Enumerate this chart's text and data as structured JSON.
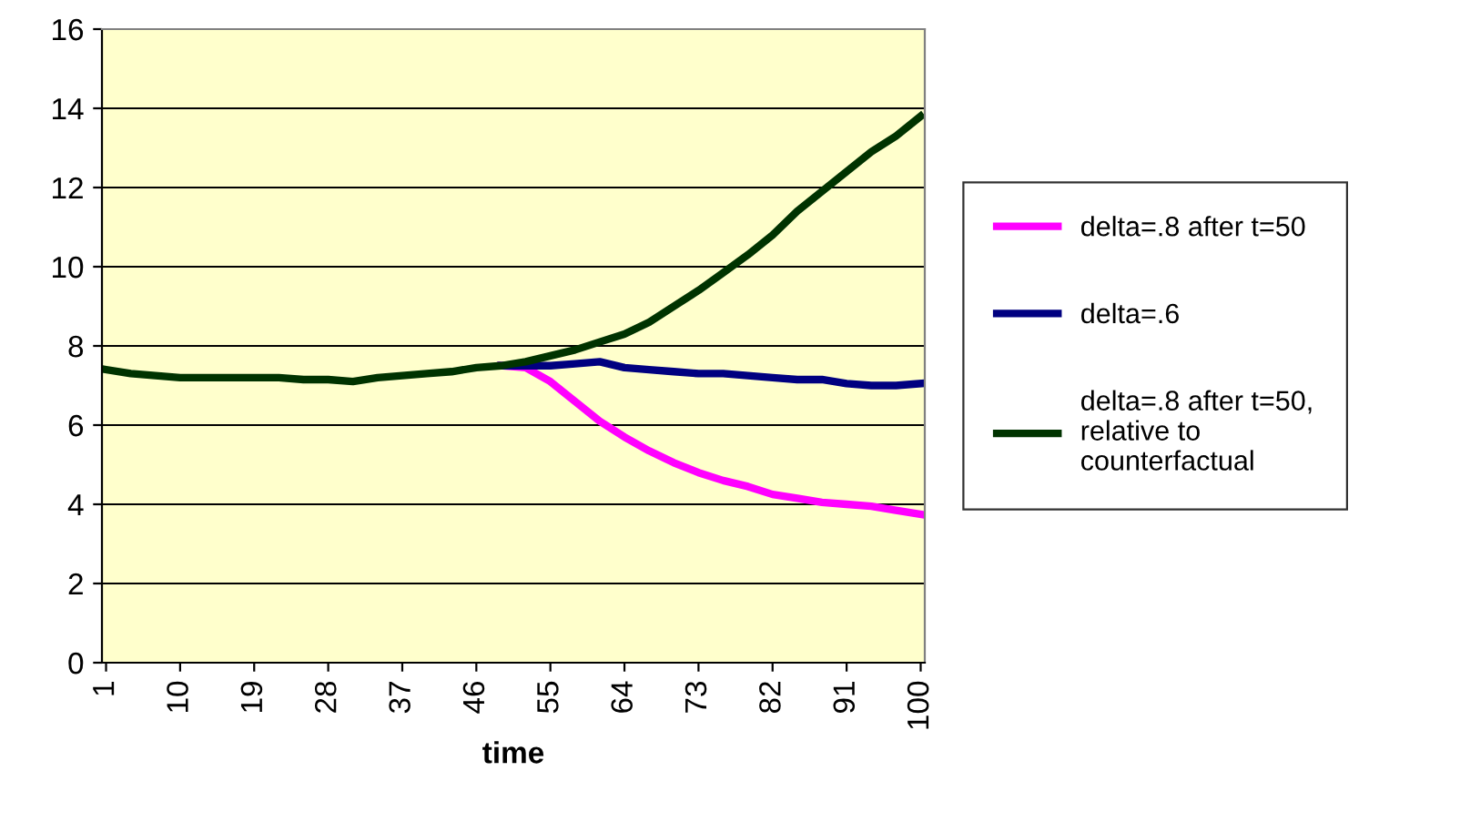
{
  "chart_data": {
    "type": "line",
    "xlabel": "time",
    "x": [
      1,
      4,
      7,
      10,
      13,
      16,
      19,
      22,
      25,
      28,
      31,
      34,
      37,
      40,
      43,
      46,
      49,
      52,
      55,
      58,
      61,
      64,
      67,
      70,
      73,
      76,
      79,
      82,
      85,
      88,
      91,
      94,
      97,
      100
    ],
    "series": [
      {
        "name": "delta=.8 after t=50",
        "color": "#ff00ff",
        "values": [
          null,
          null,
          null,
          null,
          null,
          null,
          null,
          null,
          null,
          null,
          null,
          null,
          null,
          null,
          null,
          null,
          7.5,
          7.45,
          7.1,
          6.6,
          6.1,
          5.7,
          5.35,
          5.05,
          4.8,
          4.6,
          4.45,
          4.25,
          4.15,
          4.05,
          4.0,
          3.95,
          3.85,
          3.75
        ]
      },
      {
        "name": "delta=.6",
        "color": "#000080",
        "values": [
          null,
          null,
          null,
          null,
          null,
          null,
          null,
          null,
          null,
          null,
          null,
          null,
          null,
          null,
          null,
          null,
          7.5,
          7.5,
          7.5,
          7.55,
          7.6,
          7.45,
          7.4,
          7.35,
          7.3,
          7.3,
          7.25,
          7.2,
          7.15,
          7.15,
          7.05,
          7.0,
          7.0,
          7.05
        ]
      },
      {
        "name": "delta=.8 after t=50, relative to counterfactual",
        "color": "#003300",
        "values": [
          7.4,
          7.3,
          7.25,
          7.2,
          7.2,
          7.2,
          7.2,
          7.2,
          7.15,
          7.15,
          7.1,
          7.2,
          7.25,
          7.3,
          7.35,
          7.45,
          7.5,
          7.6,
          7.75,
          7.9,
          8.1,
          8.3,
          8.6,
          9.0,
          9.4,
          9.85,
          10.3,
          10.8,
          11.4,
          11.9,
          12.4,
          12.9,
          13.3,
          13.8
        ]
      }
    ],
    "xlim": [
      0.5,
      100.5
    ],
    "xticks": [
      1,
      10,
      19,
      28,
      37,
      46,
      55,
      64,
      73,
      82,
      91,
      100
    ],
    "ylim": [
      0,
      16
    ],
    "yticks": [
      0,
      2,
      4,
      6,
      8,
      10,
      12,
      14,
      16
    ],
    "grid": "y",
    "legend": "right",
    "marker": "none",
    "line_style": "solid"
  }
}
